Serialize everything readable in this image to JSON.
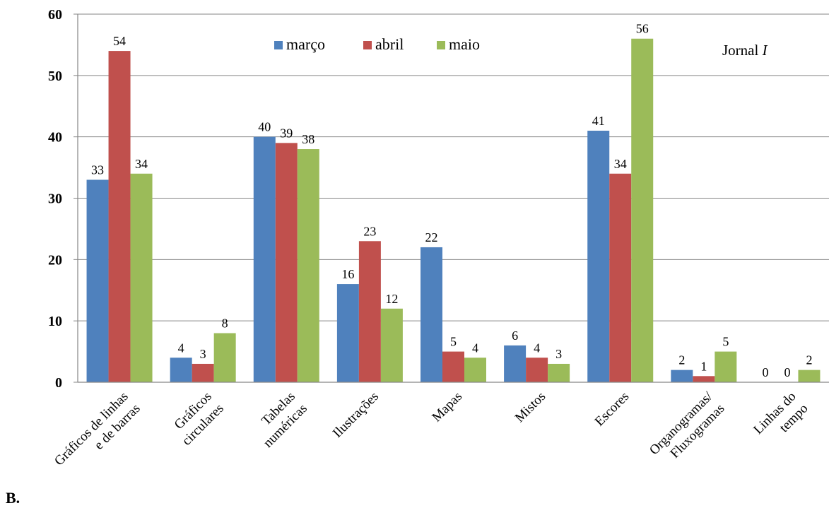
{
  "chart_data": {
    "type": "bar",
    "categories": [
      [
        "Gráficos de linhas",
        "e de barras"
      ],
      [
        "Gráficos",
        "circulares"
      ],
      [
        "Tabelas",
        "numéricas"
      ],
      [
        "Ilustrações"
      ],
      [
        "Mapas"
      ],
      [
        "Mistos"
      ],
      [
        "Escores"
      ],
      [
        "Organogramas/",
        "Fluxogramas"
      ],
      [
        "Linhas do",
        "tempo"
      ]
    ],
    "series": [
      {
        "name": "março",
        "color": "#4f81bd",
        "values": [
          33,
          4,
          40,
          16,
          22,
          6,
          41,
          2,
          0
        ]
      },
      {
        "name": "abril",
        "color": "#c0504d",
        "values": [
          54,
          3,
          39,
          23,
          5,
          4,
          34,
          1,
          0
        ]
      },
      {
        "name": "maio",
        "color": "#9bbb59",
        "values": [
          34,
          8,
          38,
          12,
          4,
          3,
          56,
          5,
          2
        ]
      }
    ],
    "ylim": [
      0,
      60
    ],
    "yticks": [
      0,
      10,
      20,
      30,
      40,
      50,
      60
    ],
    "grid": true,
    "legend_position": "top-center",
    "annotation": {
      "prefix": "Jornal ",
      "italic": "I"
    },
    "panel_label": "B."
  }
}
